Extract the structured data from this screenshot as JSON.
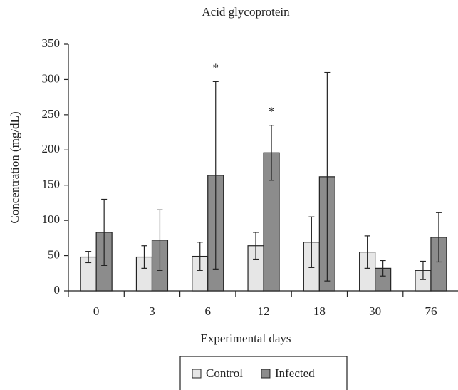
{
  "chart_data": {
    "type": "bar",
    "title": "Acid glycoprotein",
    "x_label": "Experimental days",
    "y_label": "Concentration (mg/dL)",
    "categories": [
      "0",
      "3",
      "6",
      "12",
      "18",
      "30",
      "76"
    ],
    "series": [
      {
        "name": "Control",
        "color": "#e6e6e6",
        "values": [
          48,
          48,
          49,
          64,
          69,
          55,
          29
        ],
        "errors": [
          8,
          16,
          20,
          19,
          36,
          23,
          13
        ]
      },
      {
        "name": "Infected",
        "color": "#8c8c8c",
        "values": [
          83,
          72,
          164,
          196,
          162,
          32,
          76
        ],
        "errors": [
          47,
          43,
          133,
          39,
          148,
          11,
          35
        ]
      }
    ],
    "ylim": [
      0,
      350
    ],
    "yticks": [
      0,
      50,
      100,
      150,
      200,
      250,
      300,
      350
    ],
    "grid": false,
    "legend": "bottom",
    "annotations": [
      {
        "text": "*",
        "category": "6",
        "series": "Infected"
      },
      {
        "text": "*",
        "category": "12",
        "series": "Infected"
      }
    ]
  }
}
